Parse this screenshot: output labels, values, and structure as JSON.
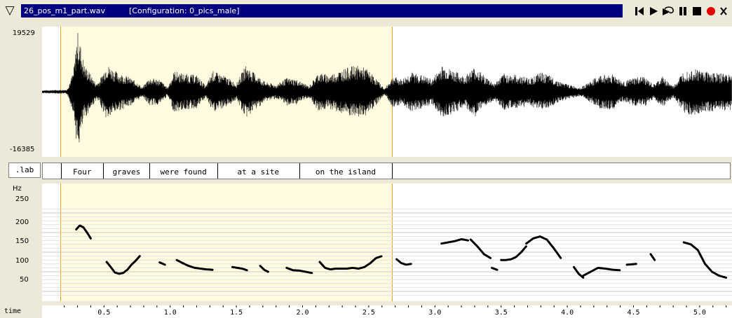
{
  "window": {
    "filename": "26_pos_m1_part.wav",
    "configuration": "[Configuration: 0_pics_male]"
  },
  "transport": [
    "skip-to-start-icon",
    "play-icon",
    "loop-play-icon",
    "pause-icon",
    "stop-icon",
    "record-icon"
  ],
  "waveform": {
    "max_label": "19529",
    "min_label": "-16385"
  },
  "label_tier": {
    "name": ".lab",
    "words": [
      {
        "text": "Four",
        "start": 0.17,
        "end": 0.49
      },
      {
        "text": "graves",
        "start": 0.49,
        "end": 0.84
      },
      {
        "text": "were found",
        "start": 0.84,
        "end": 1.35
      },
      {
        "text": "at a site",
        "start": 1.35,
        "end": 1.97
      },
      {
        "text": "on the island",
        "start": 1.97,
        "end": 2.67
      }
    ]
  },
  "pitch": {
    "unit": "Hz",
    "ticks": [
      "250",
      "200",
      "150",
      "100",
      "50"
    ],
    "tick_values": [
      250,
      200,
      150,
      100,
      50
    ]
  },
  "time_axis": {
    "label": "time",
    "ticks": [
      "0.5",
      "1.0",
      "1.5",
      "2.0",
      "2.5",
      "3.0",
      "3.5",
      "4.0",
      "4.5",
      "5.0"
    ],
    "tick_values": [
      0.5,
      1.0,
      1.5,
      2.0,
      2.5,
      3.0,
      3.5,
      4.0,
      4.5,
      5.0
    ]
  },
  "selection": {
    "start": 0.17,
    "end": 2.67
  },
  "colors": {
    "selection_bg": "#fefbe0",
    "selection_border": "#f0a020",
    "title_bar": "#000080",
    "record": "#e00000"
  }
}
